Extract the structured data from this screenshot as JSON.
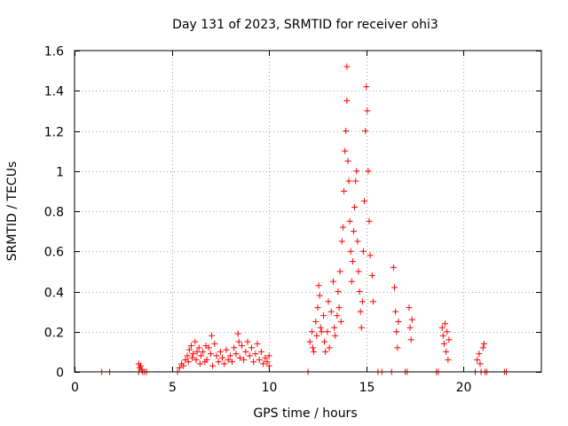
{
  "chart_data": {
    "type": "scatter",
    "title": "Day 131 of 2023, SRMTID for receiver ohi3",
    "xlabel": "GPS time / hours",
    "ylabel": "SRMTID / TECUs",
    "xlim": [
      0,
      24
    ],
    "ylim": [
      0,
      1.6
    ],
    "xticks": [
      0,
      5,
      10,
      15,
      20
    ],
    "xtick_labels": [
      "0",
      "5",
      "10",
      "15",
      "20"
    ],
    "yticks": [
      0,
      0.2,
      0.4,
      0.6,
      0.8,
      1.0,
      1.2,
      1.4,
      1.6
    ],
    "ytick_labels": [
      "0",
      "0.2",
      "0.4",
      "0.6",
      "0.8",
      "1",
      "1.2",
      "1.4",
      "1.6"
    ],
    "grid": true,
    "marker": "plus",
    "marker_color": "#ff0000",
    "series": [
      {
        "name": "SRMTID",
        "points": [
          [
            1.4,
            0.0
          ],
          [
            1.8,
            0.0
          ],
          [
            3.3,
            0.04
          ],
          [
            3.35,
            0.02
          ],
          [
            3.4,
            0.03
          ],
          [
            3.45,
            0.01
          ],
          [
            3.3,
            0.0
          ],
          [
            3.5,
            0.0
          ],
          [
            3.6,
            0.0
          ],
          [
            3.7,
            0.0
          ],
          [
            5.3,
            0.0
          ],
          [
            5.4,
            0.02
          ],
          [
            5.5,
            0.04
          ],
          [
            5.6,
            0.03
          ],
          [
            5.7,
            0.06
          ],
          [
            5.8,
            0.08
          ],
          [
            5.85,
            0.05
          ],
          [
            5.9,
            0.11
          ],
          [
            6.0,
            0.13
          ],
          [
            6.05,
            0.07
          ],
          [
            6.1,
            0.09
          ],
          [
            6.2,
            0.15
          ],
          [
            6.25,
            0.06
          ],
          [
            6.3,
            0.1
          ],
          [
            6.4,
            0.12
          ],
          [
            6.45,
            0.04
          ],
          [
            6.5,
            0.08
          ],
          [
            6.6,
            0.1
          ],
          [
            6.7,
            0.05
          ],
          [
            6.75,
            0.13
          ],
          [
            6.8,
            0.06
          ],
          [
            6.9,
            0.12
          ],
          [
            7.0,
            0.09
          ],
          [
            7.05,
            0.18
          ],
          [
            7.1,
            0.03
          ],
          [
            7.2,
            0.14
          ],
          [
            7.3,
            0.08
          ],
          [
            7.4,
            0.05
          ],
          [
            7.5,
            0.1
          ],
          [
            7.6,
            0.07
          ],
          [
            7.7,
            0.04
          ],
          [
            7.8,
            0.11
          ],
          [
            7.9,
            0.06
          ],
          [
            8.0,
            0.08
          ],
          [
            8.1,
            0.05
          ],
          [
            8.2,
            0.12
          ],
          [
            8.3,
            0.09
          ],
          [
            8.4,
            0.19
          ],
          [
            8.45,
            0.15
          ],
          [
            8.5,
            0.07
          ],
          [
            8.6,
            0.13
          ],
          [
            8.7,
            0.06
          ],
          [
            8.8,
            0.1
          ],
          [
            8.9,
            0.15
          ],
          [
            9.0,
            0.08
          ],
          [
            9.1,
            0.12
          ],
          [
            9.2,
            0.05
          ],
          [
            9.3,
            0.09
          ],
          [
            9.4,
            0.14
          ],
          [
            9.5,
            0.06
          ],
          [
            9.6,
            0.1
          ],
          [
            9.7,
            0.04
          ],
          [
            9.8,
            0.07
          ],
          [
            9.9,
            0.05
          ],
          [
            10.0,
            0.03
          ],
          [
            10.0,
            0.08
          ],
          [
            12.0,
            0.0
          ],
          [
            12.1,
            0.15
          ],
          [
            12.2,
            0.2
          ],
          [
            12.25,
            0.12
          ],
          [
            12.3,
            0.1
          ],
          [
            12.4,
            0.25
          ],
          [
            12.45,
            0.18
          ],
          [
            12.5,
            0.32
          ],
          [
            12.55,
            0.43
          ],
          [
            12.6,
            0.38
          ],
          [
            12.65,
            0.22
          ],
          [
            12.7,
            0.2
          ],
          [
            12.8,
            0.28
          ],
          [
            12.85,
            0.15
          ],
          [
            12.9,
            0.1
          ],
          [
            13.0,
            0.2
          ],
          [
            13.05,
            0.35
          ],
          [
            13.1,
            0.12
          ],
          [
            13.2,
            0.3
          ],
          [
            13.3,
            0.45
          ],
          [
            13.35,
            0.22
          ],
          [
            13.4,
            0.18
          ],
          [
            13.5,
            0.28
          ],
          [
            13.55,
            0.4
          ],
          [
            13.6,
            0.32
          ],
          [
            13.65,
            0.5
          ],
          [
            13.7,
            0.25
          ],
          [
            13.75,
            0.65
          ],
          [
            13.8,
            0.72
          ],
          [
            13.85,
            0.9
          ],
          [
            13.9,
            1.1
          ],
          [
            13.95,
            1.2
          ],
          [
            14.0,
            1.35
          ],
          [
            14.0,
            1.52
          ],
          [
            14.05,
            1.05
          ],
          [
            14.1,
            0.95
          ],
          [
            14.15,
            0.75
          ],
          [
            14.2,
            0.6
          ],
          [
            14.25,
            0.45
          ],
          [
            14.3,
            0.55
          ],
          [
            14.35,
            0.7
          ],
          [
            14.4,
            0.82
          ],
          [
            14.45,
            0.95
          ],
          [
            14.5,
            1.0
          ],
          [
            14.55,
            0.65
          ],
          [
            14.6,
            0.5
          ],
          [
            14.65,
            0.4
          ],
          [
            14.7,
            0.3
          ],
          [
            14.75,
            0.22
          ],
          [
            14.8,
            0.35
          ],
          [
            14.85,
            0.6
          ],
          [
            14.9,
            0.85
          ],
          [
            14.95,
            1.2
          ],
          [
            15.0,
            1.42
          ],
          [
            15.05,
            1.3
          ],
          [
            15.1,
            1.0
          ],
          [
            15.15,
            0.75
          ],
          [
            15.2,
            0.58
          ],
          [
            15.3,
            0.48
          ],
          [
            15.35,
            0.35
          ],
          [
            15.6,
            0.0
          ],
          [
            15.8,
            0.0
          ],
          [
            16.3,
            0.0
          ],
          [
            16.4,
            0.52
          ],
          [
            16.45,
            0.42
          ],
          [
            16.5,
            0.3
          ],
          [
            16.55,
            0.2
          ],
          [
            16.6,
            0.12
          ],
          [
            16.65,
            0.25
          ],
          [
            17.0,
            0.0
          ],
          [
            17.1,
            0.0
          ],
          [
            17.2,
            0.32
          ],
          [
            17.25,
            0.22
          ],
          [
            17.3,
            0.16
          ],
          [
            17.35,
            0.26
          ],
          [
            18.6,
            0.0
          ],
          [
            18.7,
            0.0
          ],
          [
            18.9,
            0.22
          ],
          [
            18.95,
            0.18
          ],
          [
            19.0,
            0.14
          ],
          [
            19.05,
            0.24
          ],
          [
            19.1,
            0.1
          ],
          [
            19.15,
            0.2
          ],
          [
            19.2,
            0.06
          ],
          [
            19.25,
            0.16
          ],
          [
            20.6,
            0.0
          ],
          [
            20.7,
            0.06
          ],
          [
            20.8,
            0.09
          ],
          [
            20.85,
            0.04
          ],
          [
            20.9,
            0.0
          ],
          [
            21.0,
            0.12
          ],
          [
            21.05,
            0.14
          ],
          [
            21.1,
            0.0
          ],
          [
            21.2,
            0.0
          ],
          [
            22.1,
            0.0
          ],
          [
            22.2,
            0.0
          ]
        ]
      }
    ]
  }
}
